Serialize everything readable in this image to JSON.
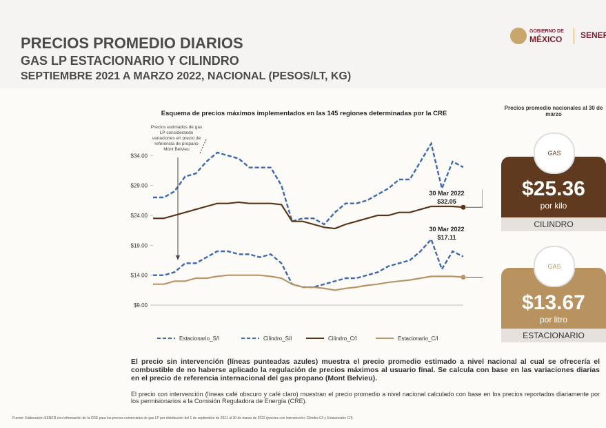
{
  "header": {
    "title": "PRECIOS PROMEDIO DIARIOS",
    "subtitle": "GAS LP ESTACIONARIO Y CILINDRO",
    "period": "SEPTIEMBRE 2021 A MARZO 2022, NACIONAL (PESOS/LT, KG)",
    "logo_gobierno_1": "GOBIERNO DE",
    "logo_gobierno_2": "MÉXICO",
    "logo_sener": "SENER"
  },
  "chart_data": {
    "type": "line",
    "title": "Esquema de precios máximos implementados en las 145 regiones determinadas por la CRE",
    "categories": [
      null,
      null,
      null,
      null,
      null,
      null,
      null,
      null,
      null,
      null,
      null,
      null,
      null,
      null,
      null,
      null,
      null,
      null,
      null,
      null,
      null,
      null,
      null,
      null,
      null,
      null,
      null,
      null,
      null,
      null
    ],
    "ylim": [
      9,
      36
    ],
    "yticks": [
      {
        "value": 9,
        "label": "$9.00"
      },
      {
        "value": 14,
        "label": "$14.00"
      },
      {
        "value": 19,
        "label": "$19.00"
      },
      {
        "value": 24,
        "label": "$24.00"
      },
      {
        "value": 29,
        "label": "$29.00"
      },
      {
        "value": 34,
        "label": "$34.00"
      }
    ],
    "grid": false,
    "legend": "bottom",
    "series": [
      {
        "name": "Estacionario_S/I",
        "color": "#3b67b3",
        "dashed": true,
        "values": [
          14,
          14,
          14.5,
          16,
          16,
          17,
          18,
          18,
          17.5,
          17.5,
          17,
          17.5,
          16,
          12.5,
          12,
          12,
          12.5,
          13,
          13.5,
          13.5,
          14,
          14.5,
          15.5,
          16,
          16.5,
          18,
          20,
          15,
          18,
          17.11
        ]
      },
      {
        "name": "Cilindro_S/I",
        "color": "#3b67b3",
        "dashed": true,
        "values": [
          27,
          27,
          28,
          30.5,
          31,
          33,
          34.5,
          34,
          33.5,
          32,
          32,
          32,
          29,
          23,
          23.5,
          23.5,
          22.5,
          24.5,
          26,
          26,
          26.5,
          27.5,
          28.5,
          30,
          30,
          33,
          36,
          28.5,
          33,
          32.05
        ]
      },
      {
        "name": "Cilindro_C/I",
        "color": "#5b3418",
        "dashed": false,
        "values": [
          23.5,
          23.5,
          24,
          24.5,
          25,
          25.5,
          26,
          26,
          26.2,
          26,
          26,
          26,
          25.8,
          23,
          23,
          22.5,
          22,
          21.8,
          22.5,
          23,
          23.5,
          24,
          24,
          24.5,
          24.5,
          25,
          25.5,
          25.5,
          25.5,
          25.36
        ]
      },
      {
        "name": "Estacionario_C/I",
        "color": "#b99566",
        "dashed": false,
        "values": [
          12.5,
          12.5,
          13,
          13,
          13.5,
          13.5,
          13.8,
          14,
          14,
          14,
          14,
          13.8,
          13.5,
          12.5,
          12,
          12,
          11.8,
          11.5,
          11.8,
          12,
          12.3,
          12.5,
          12.8,
          13,
          13.2,
          13.5,
          13.8,
          13.8,
          13.8,
          13.67
        ]
      }
    ],
    "annotations": [
      {
        "text": "Precios estimados de gas LP considerando variaciones en precio de referencia de propano Mont Belvieu"
      },
      {
        "text_1": "30 Mar 2022",
        "text_2": "$32.05"
      },
      {
        "text_1": "30 Mar 2022",
        "text_2": "$17.11"
      }
    ]
  },
  "summary": {
    "heading": "Precios promedio nacionales al 30 de marzo",
    "cilindro": {
      "icon": "GAS",
      "price": "$25.36",
      "unit": "por kilo",
      "label": "CILINDRO"
    },
    "estacionario": {
      "icon": "GAS",
      "price": "$13.67",
      "unit": "por litro",
      "label": "ESTACIONARIO"
    }
  },
  "notes": [
    "El precio sin intervención (líneas punteadas azules) muestra el precio promedio estimado a nivel nacional al cual se ofrecería el combustible de no haberse aplicado la regulación de precios máximos al usuario final. Se calcula con base en las variaciones diarias en el precio de referencia internacional del gas propano (Mont Belvieu).",
    "El precio con intervención (líneas café obscuro y café claro) muestran el precio promedio a nivel nacional calculado con base en los precios reportados diariamente por los permisionarios a la Comisión Reguladora de Energía (CRE)."
  ],
  "footnote": "Fuente: Elaboración SENER con información de la CRE para los precios comerciales de gas LP por distribución del 1 de septiembre de 2021 al 30 de marzo de 2022 (precios con intervención: Cilindro C/I y Estacionario C/I)."
}
